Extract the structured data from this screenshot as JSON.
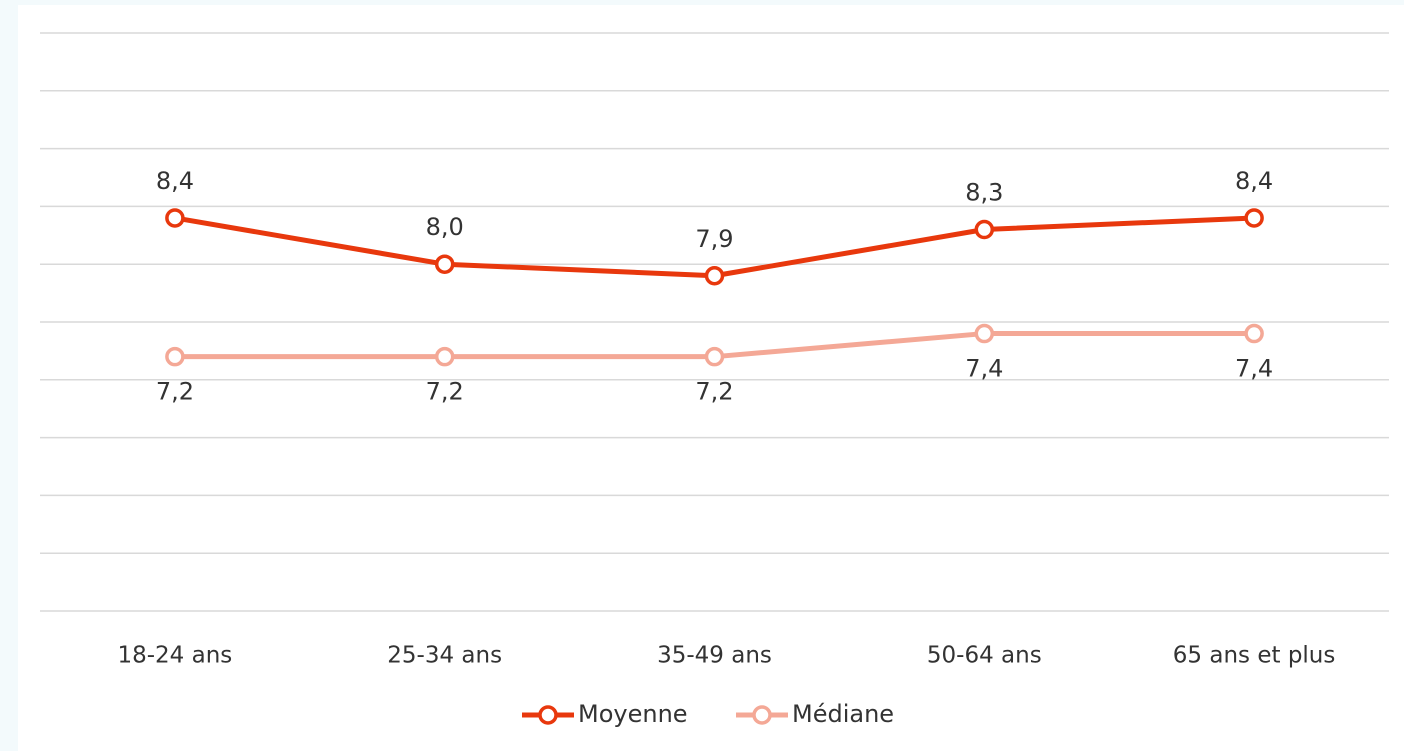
{
  "chart_data": {
    "type": "line",
    "categories": [
      "18-24 ans",
      "25-34 ans",
      "35-49 ans",
      "50-64 ans",
      "65 ans et plus"
    ],
    "series": [
      {
        "name": "Moyenne",
        "color": "#e8380d",
        "values": [
          8.4,
          8.0,
          7.9,
          8.3,
          8.4
        ],
        "value_labels": [
          "8,4",
          "8,0",
          "7,9",
          "8,3",
          "8,4"
        ]
      },
      {
        "name": "Médiane",
        "color": "#f4a896",
        "values": [
          7.2,
          7.2,
          7.2,
          7.4,
          7.4
        ],
        "value_labels": [
          "7,2",
          "7,2",
          "7,2",
          "7,4",
          "7,4"
        ]
      }
    ],
    "ylim": [
      5,
      10
    ],
    "yticks": [
      5,
      5.5,
      6,
      6.5,
      7,
      7.5,
      8,
      8.5,
      9,
      9.5,
      10
    ],
    "grid": true,
    "legend": "bottom"
  }
}
